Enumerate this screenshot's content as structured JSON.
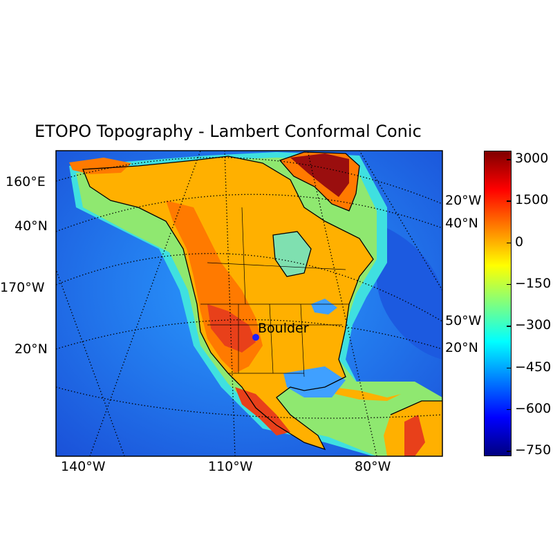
{
  "title": "ETOPO Topography - Lambert Conformal Conic",
  "city": {
    "name": "Boulder",
    "marker_color": "#1f1fff"
  },
  "lon_labels_bottom": [
    "140°W",
    "110°W",
    "80°W"
  ],
  "left_labels": [
    "160°E",
    "40°N",
    "170°W",
    "20°N"
  ],
  "right_labels": [
    "20°W",
    "40°N",
    "50°W",
    "20°N"
  ],
  "colorbar": {
    "ticks": [
      "3000",
      "1500",
      "0",
      "−150",
      "−300",
      "−450",
      "−600",
      "−750"
    ],
    "colormap": "jet",
    "colors": [
      "#00007f",
      "#0000ff",
      "#007fff",
      "#00ffff",
      "#7fff7f",
      "#ffff00",
      "#ff7f00",
      "#ff0000",
      "#7f0000"
    ]
  },
  "colors": {
    "ocean_deep": "#1a5fe0",
    "ocean_mid": "#27a4ff",
    "ocean_shelf": "#3fe6e0",
    "land_low": "#ffb000",
    "land_mid": "#ff7a00",
    "land_high": "#e82a10",
    "ice": "#9a0e0e"
  }
}
